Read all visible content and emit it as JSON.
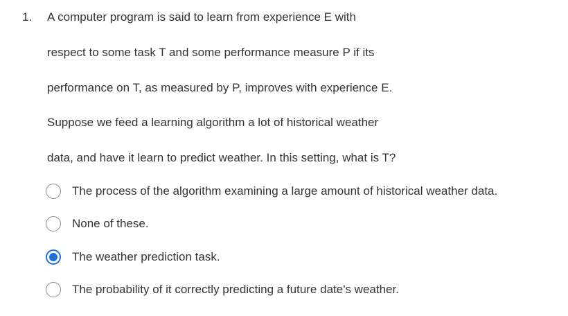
{
  "question": {
    "number": "1.",
    "lines": [
      "A computer program is said to learn from experience E with",
      "respect to some task T and some performance measure P if its",
      "performance on T, as measured by P, improves with experience E.",
      "Suppose we feed a learning algorithm a lot of historical weather",
      "data, and have it learn to predict weather. In this setting, what is T?"
    ],
    "options": [
      {
        "label": "The process of the algorithm examining a large amount of historical weather data.",
        "selected": false
      },
      {
        "label": "None of these.",
        "selected": false
      },
      {
        "label": "The weather prediction task.",
        "selected": true
      },
      {
        "label": "The probability of it correctly predicting a future date's weather.",
        "selected": false
      }
    ]
  },
  "colors": {
    "text": "#333333",
    "accent": "#1f73d8",
    "radio_border": "#8a8a8a"
  }
}
